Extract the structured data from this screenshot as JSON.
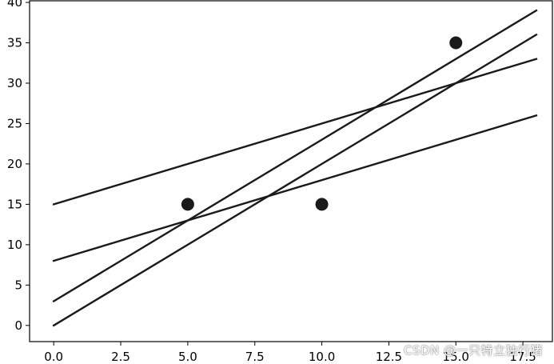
{
  "chart_data": {
    "type": "scatter",
    "title": "",
    "xlabel": "",
    "ylabel": "",
    "xlim": [
      -0.9,
      18.6
    ],
    "ylim": [
      -2,
      40.2
    ],
    "xticks": [
      0.0,
      2.5,
      5.0,
      7.5,
      10.0,
      12.5,
      15.0,
      17.5
    ],
    "xtick_labels": [
      "0.0",
      "2.5",
      "5.0",
      "7.5",
      "10.0",
      "12.5",
      "15.0",
      "17.5"
    ],
    "yticks": [
      0,
      5,
      10,
      15,
      20,
      25,
      30,
      35,
      40
    ],
    "ytick_labels": [
      "0",
      "5",
      "10",
      "15",
      "20",
      "25",
      "30",
      "35",
      "40"
    ],
    "grid": false,
    "points": [
      {
        "x": 5,
        "y": 15
      },
      {
        "x": 10,
        "y": 15
      },
      {
        "x": 15,
        "y": 35
      }
    ],
    "lines": [
      {
        "x": [
          0,
          18
        ],
        "y": [
          15,
          33
        ]
      },
      {
        "x": [
          0,
          18
        ],
        "y": [
          8,
          26
        ]
      },
      {
        "x": [
          0,
          18
        ],
        "y": [
          3,
          39
        ]
      },
      {
        "x": [
          0,
          18
        ],
        "y": [
          0,
          36
        ]
      }
    ],
    "colors": {
      "line": "#1a1a1a",
      "point": "#1a1a1a",
      "axes": "#000000"
    }
  },
  "watermark": "CSDN @一只特立独行猪"
}
